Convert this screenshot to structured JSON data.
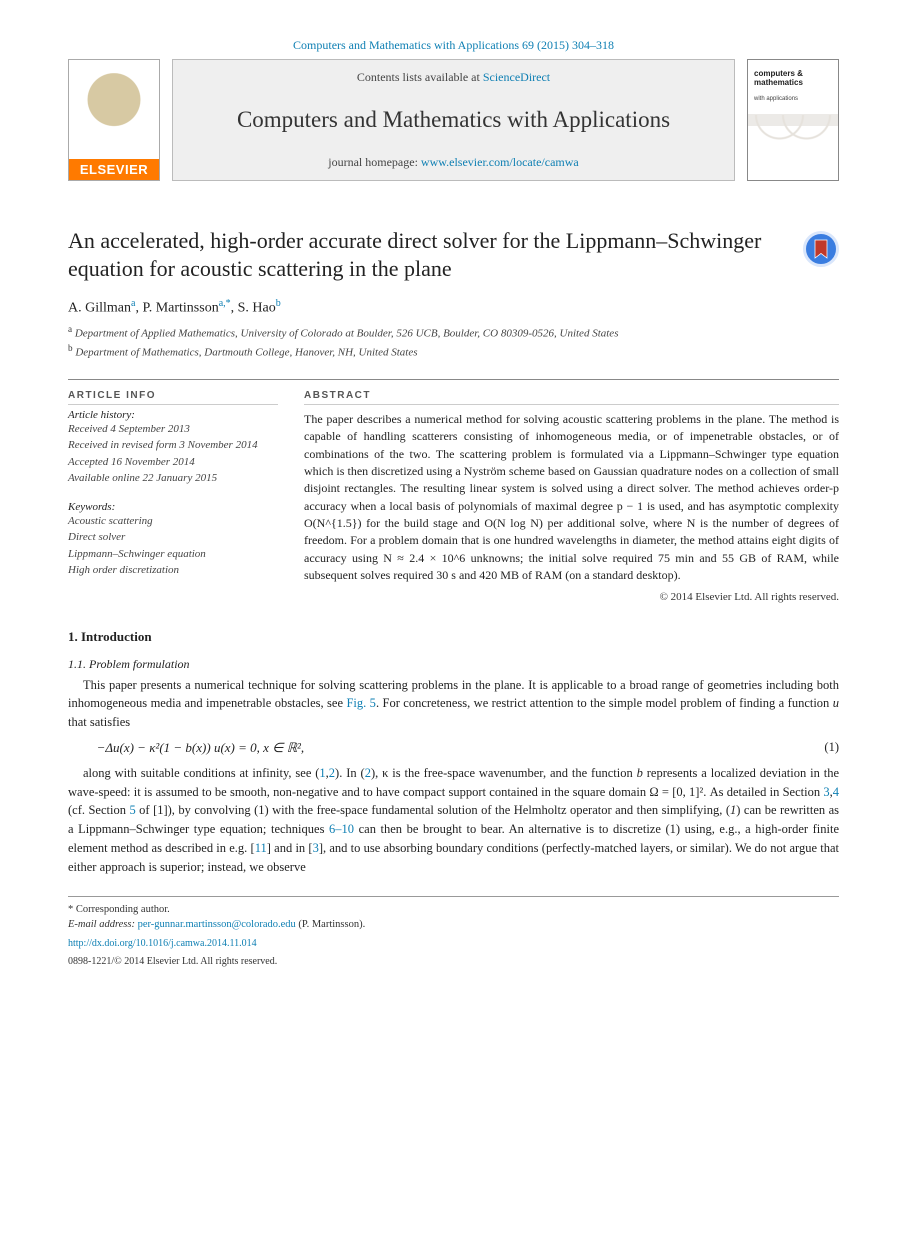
{
  "colors": {
    "link": "#0e7fb3",
    "text": "#222222",
    "rule": "#888888",
    "masthead_bg": "#efefef",
    "elsevier_orange": "#ff7a00",
    "crossmark_blue": "#3a7de0"
  },
  "typography": {
    "body_family": "Georgia, 'Times New Roman', serif",
    "title_size_pt": 22,
    "journal_size_pt": 23,
    "body_size_pt": 12.5,
    "small_size_pt": 11
  },
  "crumb": {
    "text": "Computers and Mathematics with Applications 69 (2015) 304–318"
  },
  "masthead": {
    "elsevier_word": "ELSEVIER",
    "contents_prefix": "Contents lists available at ",
    "contents_link": "ScienceDirect",
    "journal": "Computers and Mathematics with Applications",
    "homepage_prefix": "journal homepage: ",
    "homepage_link": "www.elsevier.com/locate/camwa",
    "cover_title": "computers & mathematics",
    "cover_sub": "with applications"
  },
  "title": "An accelerated, high-order accurate direct solver for the Lippmann–Schwinger equation for acoustic scattering in the plane",
  "authors_html": "A. Gillman<sup class=\"link\">a</sup>, P. Martinsson<sup class=\"link\">a,*</sup>, S. Hao<sup class=\"link\">b</sup>",
  "affiliations": [
    {
      "mark": "a",
      "text": "Department of Applied Mathematics, University of Colorado at Boulder, 526 UCB, Boulder, CO 80309-0526, United States"
    },
    {
      "mark": "b",
      "text": "Department of Mathematics, Dartmouth College, Hanover, NH, United States"
    }
  ],
  "article_info": {
    "heading": "ARTICLE INFO",
    "history_label": "Article history:",
    "history": [
      "Received 4 September 2013",
      "Received in revised form 3 November 2014",
      "Accepted 16 November 2014",
      "Available online 22 January 2015"
    ],
    "keywords_label": "Keywords:",
    "keywords": [
      "Acoustic scattering",
      "Direct solver",
      "Lippmann–Schwinger equation",
      "High order discretization"
    ]
  },
  "abstract": {
    "heading": "ABSTRACT",
    "text": "The paper describes a numerical method for solving acoustic scattering problems in the plane. The method is capable of handling scatterers consisting of inhomogeneous media, or of impenetrable obstacles, or of combinations of the two. The scattering problem is formulated via a Lippmann–Schwinger type equation which is then discretized using a Nyström scheme based on Gaussian quadrature nodes on a collection of small disjoint rectangles. The resulting linear system is solved using a direct solver. The method achieves order-p accuracy when a local basis of polynomials of maximal degree p − 1 is used, and has asymptotic complexity O(N^{1.5}) for the build stage and O(N log N) per additional solve, where N is the number of degrees of freedom. For a problem domain that is one hundred wavelengths in diameter, the method attains eight digits of accuracy using N ≈ 2.4 × 10^6 unknowns; the initial solve required 75 min and 55 GB of RAM, while subsequent solves required 30 s and 420 MB of RAM (on a standard desktop).",
    "copyright": "© 2014 Elsevier Ltd. All rights reserved."
  },
  "section1": {
    "num": "1.",
    "title": "Introduction",
    "sub_num": "1.1.",
    "sub_title": "Problem formulation",
    "para1_html": "This paper presents a numerical technique for solving scattering problems in the plane. It is applicable to a broad range of geometries including both inhomogeneous media and impenetrable obstacles, see <a class=\"ref\" href=\"#\">Fig. 5</a>. For concreteness, we restrict attention to the simple model problem of finding a function <span class=\"eqno\">u</span> that satisfies",
    "eq1": "−Δu(x) − κ²(1 − b(x)) u(x) = 0,   x ∈ ℝ²,",
    "eq1_no": "(1)",
    "para2_html": "along with suitable conditions at infinity, see (<a class=\"cite\" href=\"#\">1</a>,<a class=\"cite\" href=\"#\">2</a>). In (<a class=\"cite\" href=\"#\">2</a>), κ is the free-space wavenumber, and the function <span class=\"eqno\">b</span> represents a localized deviation in the wave-speed: it is assumed to be smooth, non-negative and to have compact support contained in the square domain Ω = [0, 1]². As detailed in Section <a class=\"cite\" href=\"#\">3</a>,<a class=\"cite\" href=\"#\">4</a> (cf. Section <a class=\"cite\" href=\"#\">5</a> of [1]), by convolving (1) with the free-space fundamental solution of the Helmholtz operator and then simplifying, (<span class=\"eqno\">1</span>) can be rewritten as a Lippmann–Schwinger type equation; techniques <a class=\"cite\" href=\"#\">6–10</a> can then be brought to bear. An alternative is to discretize (1) using, e.g., a high-order finite element method as described in e.g. [<a class=\"cite\" href=\"#\">11</a>] and in [<a class=\"cite\" href=\"#\">3</a>], and to use absorbing boundary conditions (perfectly-matched layers, or similar). We do not argue that either approach is superior; instead, we observe"
  },
  "footnotes": {
    "corr_label": "* Corresponding author.",
    "email_label": "E-mail address:",
    "email": "per-gunnar.martinsson@colorado.edu",
    "email_who": "(P. Martinsson).",
    "doi": "http://dx.doi.org/10.1016/j.camwa.2014.11.014",
    "issn_line": "0898-1221/© 2014 Elsevier Ltd. All rights reserved."
  }
}
